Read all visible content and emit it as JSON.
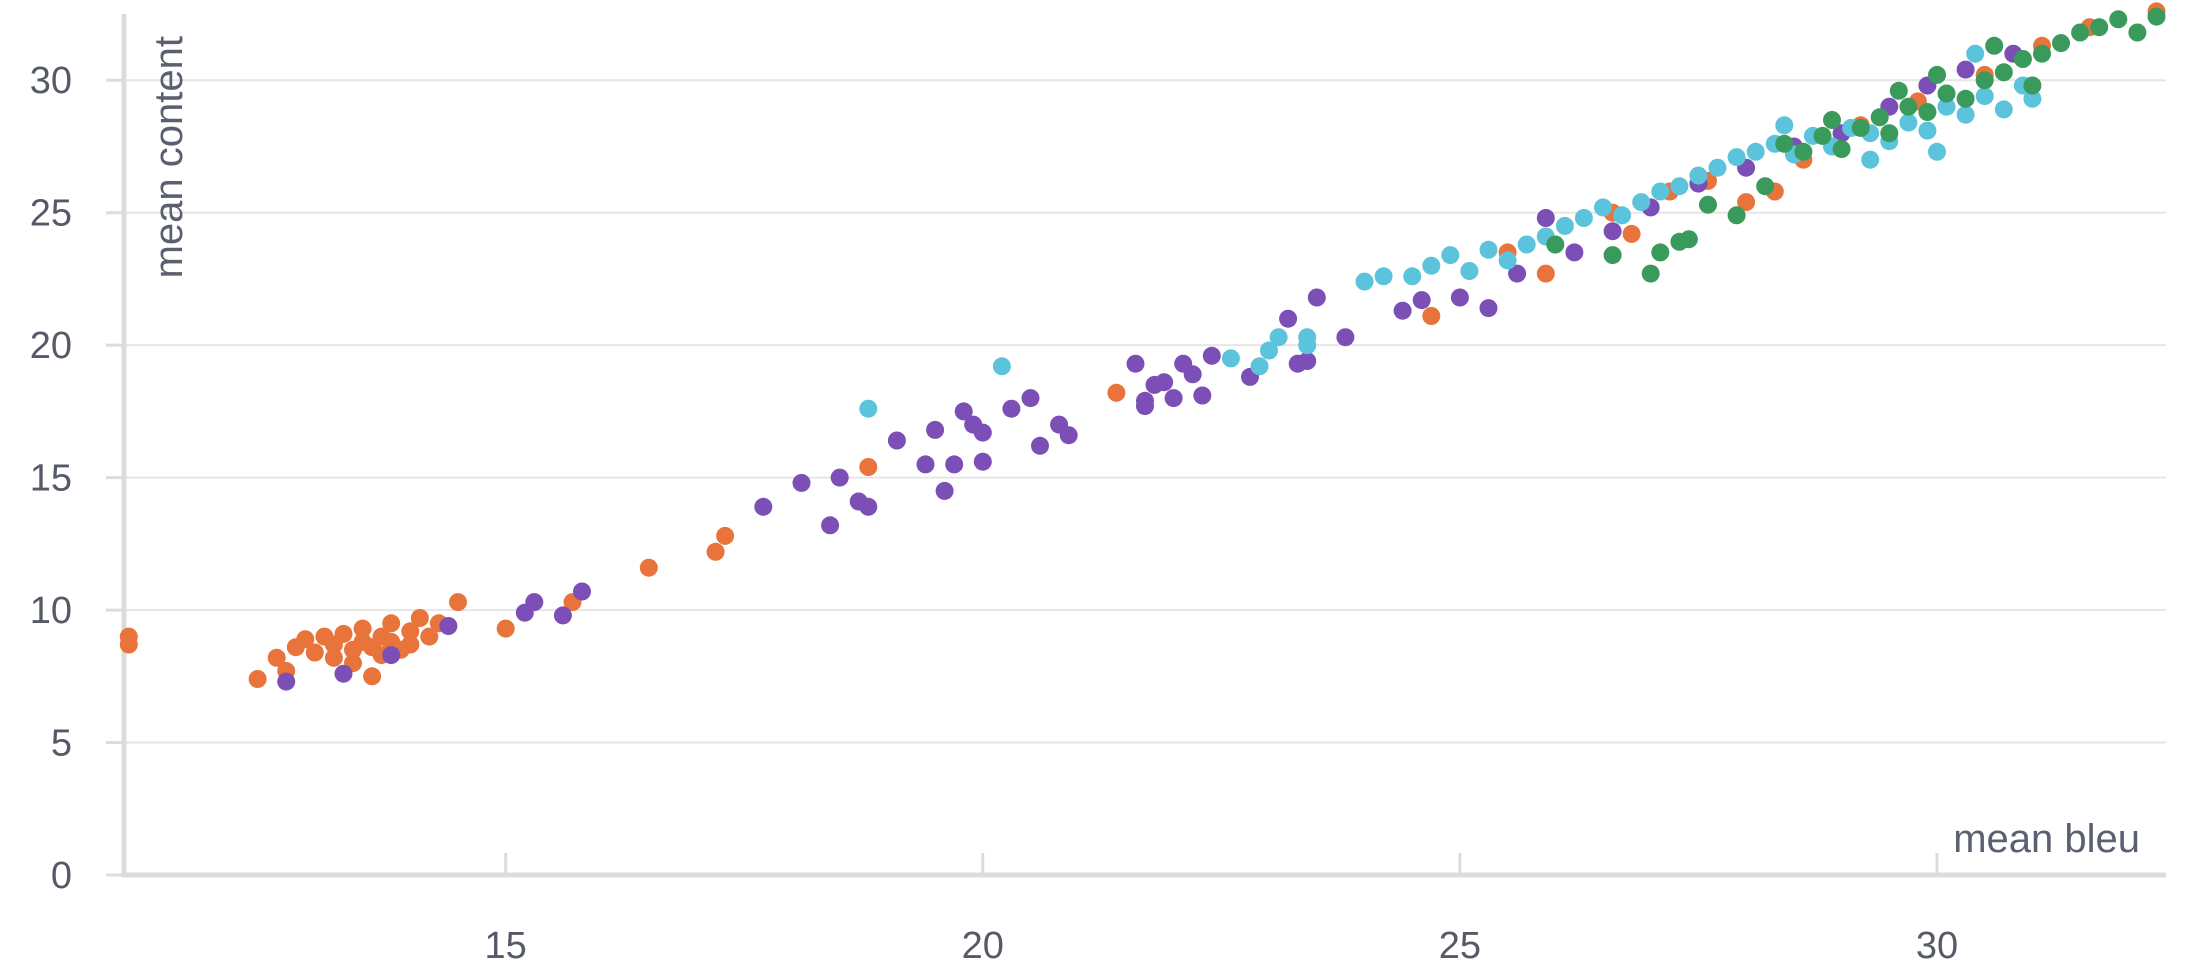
{
  "chart_data": {
    "type": "scatter",
    "title": "",
    "xlabel": "mean bleu",
    "ylabel": "mean content",
    "xlim": [
      11,
      32.4
    ],
    "ylim": [
      0,
      32.5
    ],
    "xticks": [
      15,
      20,
      25,
      30
    ],
    "yticks": [
      0,
      5,
      10,
      15,
      20,
      25,
      30
    ],
    "grid": "horizontal",
    "legend": "none",
    "series": [
      {
        "color": "#e8743b",
        "points": [
          [
            11.05,
            9.0
          ],
          [
            11.05,
            8.7
          ],
          [
            12.4,
            7.4
          ],
          [
            12.7,
            7.7
          ],
          [
            12.6,
            8.2
          ],
          [
            12.8,
            8.6
          ],
          [
            12.9,
            8.9
          ],
          [
            13.0,
            8.4
          ],
          [
            13.1,
            9.0
          ],
          [
            13.2,
            8.7
          ],
          [
            13.2,
            8.2
          ],
          [
            13.3,
            9.1
          ],
          [
            13.4,
            8.5
          ],
          [
            13.4,
            8.0
          ],
          [
            13.5,
            8.8
          ],
          [
            13.5,
            9.3
          ],
          [
            13.6,
            8.6
          ],
          [
            13.6,
            7.5
          ],
          [
            13.7,
            9.0
          ],
          [
            13.7,
            8.3
          ],
          [
            13.8,
            8.8
          ],
          [
            13.8,
            9.5
          ],
          [
            13.9,
            8.5
          ],
          [
            14.0,
            9.2
          ],
          [
            14.0,
            8.7
          ],
          [
            14.1,
            9.7
          ],
          [
            14.2,
            9.0
          ],
          [
            14.3,
            9.5
          ],
          [
            14.5,
            10.3
          ],
          [
            15.0,
            9.3
          ],
          [
            15.7,
            10.3
          ],
          [
            16.5,
            11.6
          ],
          [
            17.2,
            12.2
          ],
          [
            17.3,
            12.8
          ],
          [
            18.8,
            15.4
          ],
          [
            21.4,
            18.2
          ],
          [
            24.7,
            21.1
          ],
          [
            25.5,
            23.5
          ],
          [
            25.9,
            22.7
          ],
          [
            26.6,
            25.0
          ],
          [
            26.8,
            24.2
          ],
          [
            27.2,
            25.8
          ],
          [
            27.6,
            26.2
          ],
          [
            28.0,
            25.4
          ],
          [
            28.3,
            25.8
          ],
          [
            28.6,
            27.0
          ],
          [
            29.2,
            28.3
          ],
          [
            29.8,
            29.2
          ],
          [
            30.5,
            30.2
          ],
          [
            31.1,
            31.3
          ],
          [
            31.6,
            32.0
          ],
          [
            32.3,
            32.6
          ]
        ]
      },
      {
        "color": "#7b4fb5",
        "points": [
          [
            12.7,
            7.3
          ],
          [
            13.3,
            7.6
          ],
          [
            13.8,
            8.3
          ],
          [
            14.4,
            9.4
          ],
          [
            15.2,
            9.9
          ],
          [
            15.3,
            10.3
          ],
          [
            15.6,
            9.8
          ],
          [
            15.8,
            10.7
          ],
          [
            17.7,
            13.9
          ],
          [
            18.1,
            14.8
          ],
          [
            18.4,
            13.2
          ],
          [
            18.5,
            15.0
          ],
          [
            18.7,
            14.1
          ],
          [
            18.8,
            13.9
          ],
          [
            19.1,
            16.4
          ],
          [
            19.4,
            15.5
          ],
          [
            19.5,
            16.8
          ],
          [
            19.6,
            14.5
          ],
          [
            19.7,
            15.5
          ],
          [
            19.8,
            17.5
          ],
          [
            19.9,
            17.0
          ],
          [
            20.0,
            15.6
          ],
          [
            20.0,
            16.7
          ],
          [
            20.3,
            17.6
          ],
          [
            20.5,
            18.0
          ],
          [
            20.6,
            16.2
          ],
          [
            20.8,
            17.0
          ],
          [
            20.9,
            16.6
          ],
          [
            21.6,
            19.3
          ],
          [
            21.7,
            17.9
          ],
          [
            21.7,
            17.7
          ],
          [
            21.8,
            18.5
          ],
          [
            21.9,
            18.6
          ],
          [
            22.0,
            18.0
          ],
          [
            22.1,
            19.3
          ],
          [
            22.2,
            18.9
          ],
          [
            22.3,
            18.1
          ],
          [
            22.4,
            19.6
          ],
          [
            22.8,
            18.8
          ],
          [
            23.2,
            21.0
          ],
          [
            23.3,
            19.3
          ],
          [
            23.4,
            19.4
          ],
          [
            23.5,
            21.8
          ],
          [
            23.8,
            20.3
          ],
          [
            24.4,
            21.3
          ],
          [
            24.6,
            21.7
          ],
          [
            25.0,
            21.8
          ],
          [
            25.3,
            21.4
          ],
          [
            25.6,
            22.7
          ],
          [
            25.9,
            24.8
          ],
          [
            26.2,
            23.5
          ],
          [
            26.6,
            24.3
          ],
          [
            27.0,
            25.2
          ],
          [
            27.5,
            26.1
          ],
          [
            28.0,
            26.7
          ],
          [
            28.5,
            27.5
          ],
          [
            29.0,
            28.0
          ],
          [
            29.5,
            29.0
          ],
          [
            29.9,
            29.8
          ],
          [
            30.3,
            30.4
          ],
          [
            30.8,
            31.0
          ]
        ]
      },
      {
        "color": "#5bc4dc",
        "points": [
          [
            18.8,
            17.6
          ],
          [
            20.2,
            19.2
          ],
          [
            22.6,
            19.5
          ],
          [
            22.9,
            19.2
          ],
          [
            23.0,
            19.8
          ],
          [
            23.1,
            20.3
          ],
          [
            23.4,
            20.0
          ],
          [
            23.4,
            20.3
          ],
          [
            24.0,
            22.4
          ],
          [
            24.2,
            22.6
          ],
          [
            24.5,
            22.6
          ],
          [
            24.7,
            23.0
          ],
          [
            24.9,
            23.4
          ],
          [
            25.1,
            22.8
          ],
          [
            25.3,
            23.6
          ],
          [
            25.5,
            23.2
          ],
          [
            25.7,
            23.8
          ],
          [
            25.9,
            24.1
          ],
          [
            26.1,
            24.5
          ],
          [
            26.3,
            24.8
          ],
          [
            26.5,
            25.2
          ],
          [
            26.7,
            24.9
          ],
          [
            26.9,
            25.4
          ],
          [
            27.1,
            25.8
          ],
          [
            27.3,
            26.0
          ],
          [
            27.5,
            26.4
          ],
          [
            27.7,
            26.7
          ],
          [
            27.9,
            27.1
          ],
          [
            28.1,
            27.3
          ],
          [
            28.3,
            27.6
          ],
          [
            28.5,
            27.2
          ],
          [
            28.7,
            27.9
          ],
          [
            28.9,
            27.5
          ],
          [
            29.1,
            28.2
          ],
          [
            29.3,
            28.0
          ],
          [
            29.5,
            27.7
          ],
          [
            29.7,
            28.4
          ],
          [
            29.9,
            28.1
          ],
          [
            30.1,
            29.0
          ],
          [
            30.3,
            28.7
          ],
          [
            30.5,
            29.4
          ],
          [
            30.7,
            28.9
          ],
          [
            30.9,
            29.8
          ],
          [
            31.0,
            29.3
          ],
          [
            29.3,
            27.0
          ],
          [
            30.0,
            27.3
          ],
          [
            28.4,
            28.3
          ],
          [
            30.4,
            31.0
          ]
        ]
      },
      {
        "color": "#3a9a5b",
        "points": [
          [
            26.0,
            23.8
          ],
          [
            26.6,
            23.4
          ],
          [
            27.0,
            22.7
          ],
          [
            27.1,
            23.5
          ],
          [
            27.3,
            23.9
          ],
          [
            27.4,
            24.0
          ],
          [
            27.6,
            25.3
          ],
          [
            27.9,
            24.9
          ],
          [
            28.2,
            26.0
          ],
          [
            28.4,
            27.6
          ],
          [
            28.6,
            27.3
          ],
          [
            28.8,
            27.9
          ],
          [
            29.0,
            27.4
          ],
          [
            29.2,
            28.2
          ],
          [
            29.4,
            28.6
          ],
          [
            29.5,
            28.0
          ],
          [
            29.7,
            29.0
          ],
          [
            29.9,
            28.8
          ],
          [
            30.1,
            29.5
          ],
          [
            30.3,
            29.3
          ],
          [
            30.5,
            30.0
          ],
          [
            30.7,
            30.3
          ],
          [
            30.9,
            30.8
          ],
          [
            31.1,
            31.0
          ],
          [
            31.3,
            31.4
          ],
          [
            31.5,
            31.8
          ],
          [
            31.7,
            32.0
          ],
          [
            31.9,
            32.3
          ],
          [
            32.1,
            31.8
          ],
          [
            32.3,
            32.4
          ],
          [
            30.0,
            30.2
          ],
          [
            30.6,
            31.3
          ],
          [
            31.0,
            29.8
          ],
          [
            29.6,
            29.6
          ],
          [
            28.9,
            28.5
          ]
        ]
      }
    ]
  }
}
